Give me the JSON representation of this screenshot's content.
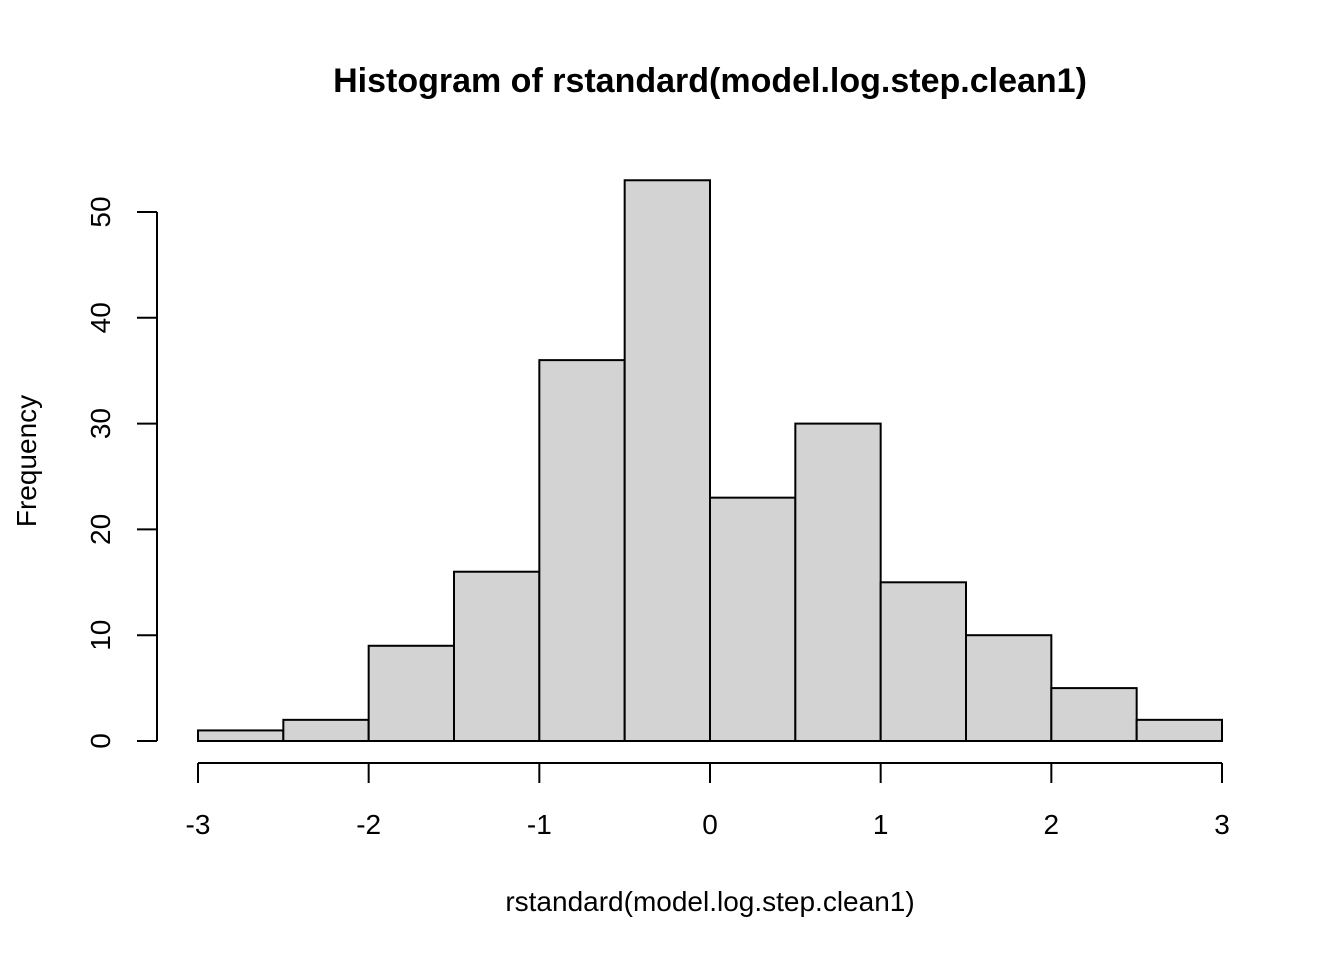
{
  "chart_data": {
    "type": "bar",
    "title": "Histogram of rstandard(model.log.step.clean1)",
    "xlabel": "rstandard(model.log.step.clean1)",
    "ylabel": "Frequency",
    "bin_edges": [
      -3,
      -2.5,
      -2,
      -1.5,
      -1,
      -0.5,
      0,
      0.5,
      1,
      1.5,
      2,
      2.5,
      3
    ],
    "values": [
      1,
      2,
      9,
      16,
      36,
      53,
      23,
      30,
      15,
      10,
      5,
      2
    ],
    "xlim": [
      -3,
      3
    ],
    "ylim": [
      0,
      50
    ],
    "x_ticks": [
      "-3",
      "-2",
      "-1",
      "0",
      "1",
      "2",
      "3"
    ],
    "y_ticks": [
      "0",
      "10",
      "20",
      "30",
      "40",
      "50"
    ],
    "bar_fill": "#d3d3d3",
    "bar_stroke": "#000000",
    "grid": false,
    "legend": "none"
  }
}
